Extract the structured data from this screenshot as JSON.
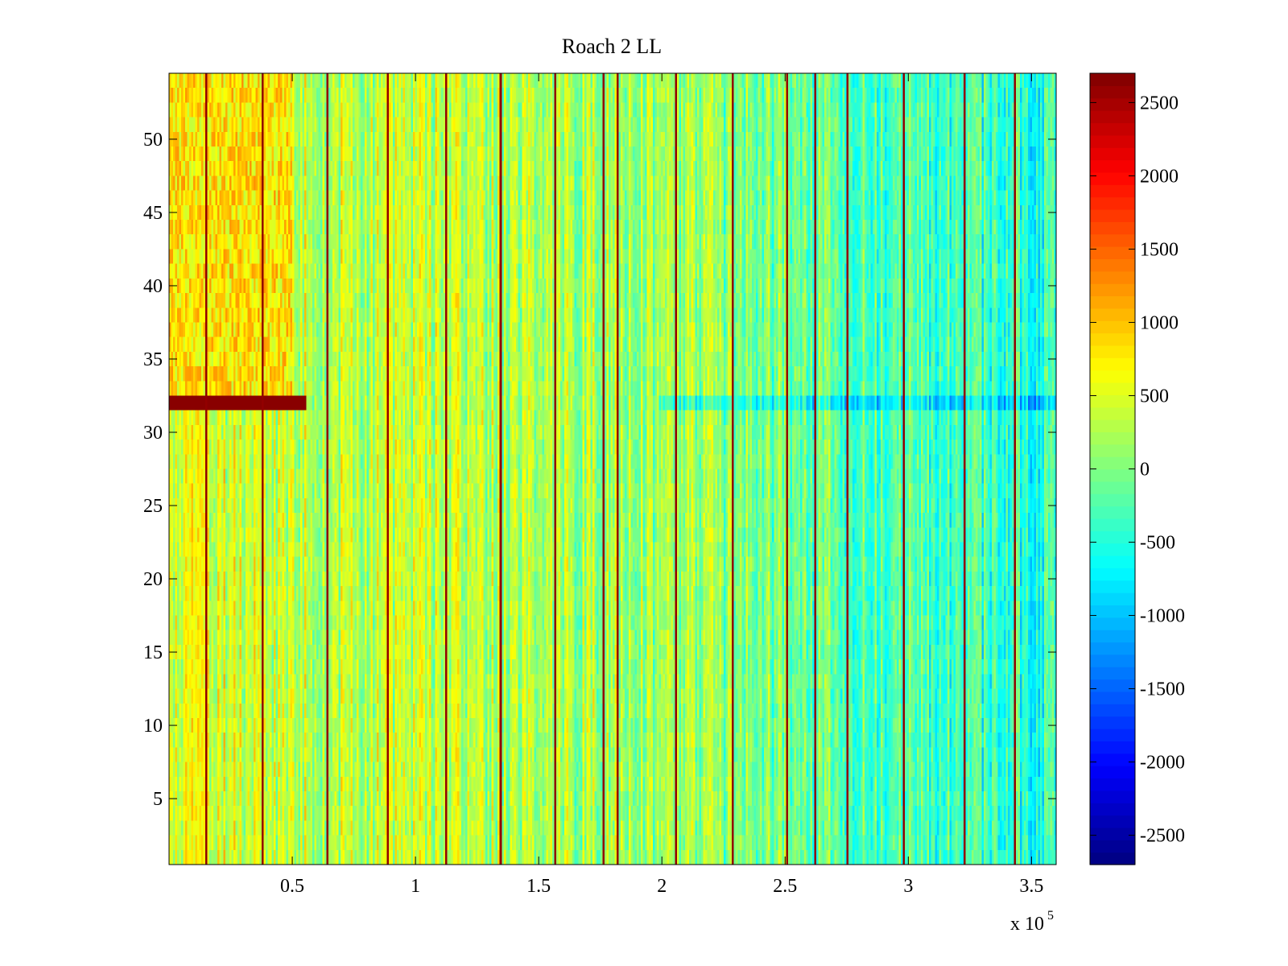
{
  "chart_data": {
    "type": "heatmap",
    "title": "Roach 2 LL",
    "xlabel": "",
    "ylabel": "",
    "x_range": [
      0,
      360000
    ],
    "y_range": [
      0.5,
      54.5
    ],
    "x_ticks": [
      50000,
      100000,
      150000,
      200000,
      250000,
      300000,
      350000
    ],
    "x_tick_labels": [
      "0.5",
      "1",
      "1.5",
      "2",
      "2.5",
      "3",
      "3.5"
    ],
    "x_multiplier": {
      "base": "x 10",
      "exponent": "5"
    },
    "y_ticks": [
      5,
      10,
      15,
      20,
      25,
      30,
      35,
      40,
      45,
      50
    ],
    "y_tick_labels": [
      "5",
      "10",
      "15",
      "20",
      "25",
      "30",
      "35",
      "40",
      "45",
      "50"
    ],
    "rows": 54,
    "colormap": "jet",
    "colorbar": {
      "clim": [
        -2700,
        2700
      ],
      "ticks": [
        2500,
        2000,
        1500,
        1000,
        500,
        0,
        -500,
        -1000,
        -1500,
        -2000,
        -2500
      ],
      "tick_labels": [
        "2500",
        "2000",
        "1500",
        "1000",
        "500",
        "0",
        "-500",
        "-1000",
        "-1500",
        "-2000",
        "-2500"
      ]
    },
    "spike_columns_x": [
      15000,
      38000,
      64000,
      88000,
      112000,
      134000,
      156000,
      176000,
      182000,
      205000,
      228000,
      250000,
      262000,
      275000,
      298000,
      322000,
      343000
    ],
    "spike_value": 2600,
    "hot_band": {
      "row": 32,
      "x_start": 0,
      "x_end": 56000,
      "value": 2650
    },
    "warm_region": {
      "rows": [
        33,
        54
      ],
      "x_start": 0,
      "x_end": 50000,
      "value": 800
    },
    "trend_description_values": {
      "left_mean": 450,
      "mid_mean": 200,
      "right_mean": -500
    }
  }
}
